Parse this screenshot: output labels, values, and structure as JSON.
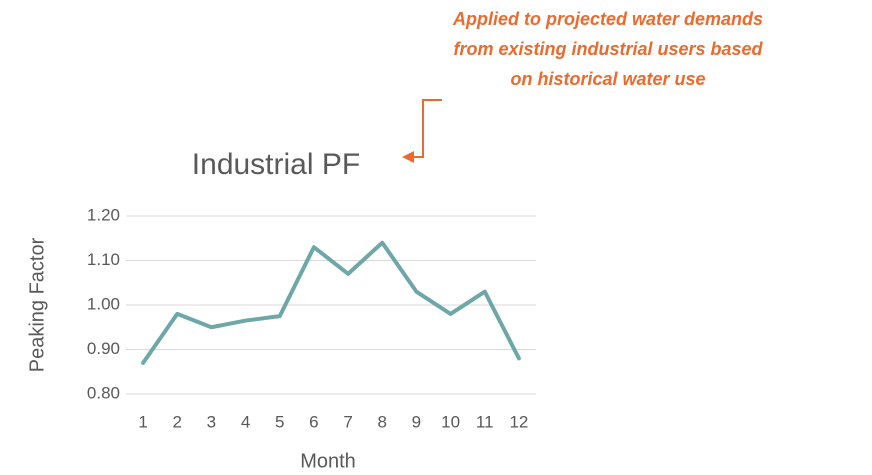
{
  "chart_data": {
    "type": "line",
    "title": "Industrial PF",
    "annotation": [
      "Applied to projected water demands",
      "from existing industrial users based",
      "on historical water use"
    ],
    "x_label": "Month",
    "y_label": "Peaking Factor",
    "categories": [
      "1",
      "2",
      "3",
      "4",
      "5",
      "6",
      "7",
      "8",
      "9",
      "10",
      "11",
      "12"
    ],
    "series": [
      {
        "name": "Industrial PF",
        "color": "#6ea7a7",
        "values": [
          0.87,
          0.98,
          0.95,
          0.965,
          0.975,
          1.13,
          1.07,
          1.14,
          1.03,
          0.98,
          1.03,
          0.88
        ]
      }
    ],
    "ylim": [
      0.8,
      1.2
    ],
    "yticks": [
      {
        "value": 0.8,
        "label": "0.80"
      },
      {
        "value": 0.9,
        "label": "0.90"
      },
      {
        "value": 1.0,
        "label": "1.00"
      },
      {
        "value": 1.1,
        "label": "1.10"
      },
      {
        "value": 1.2,
        "label": "1.20"
      }
    ],
    "grid": true
  }
}
